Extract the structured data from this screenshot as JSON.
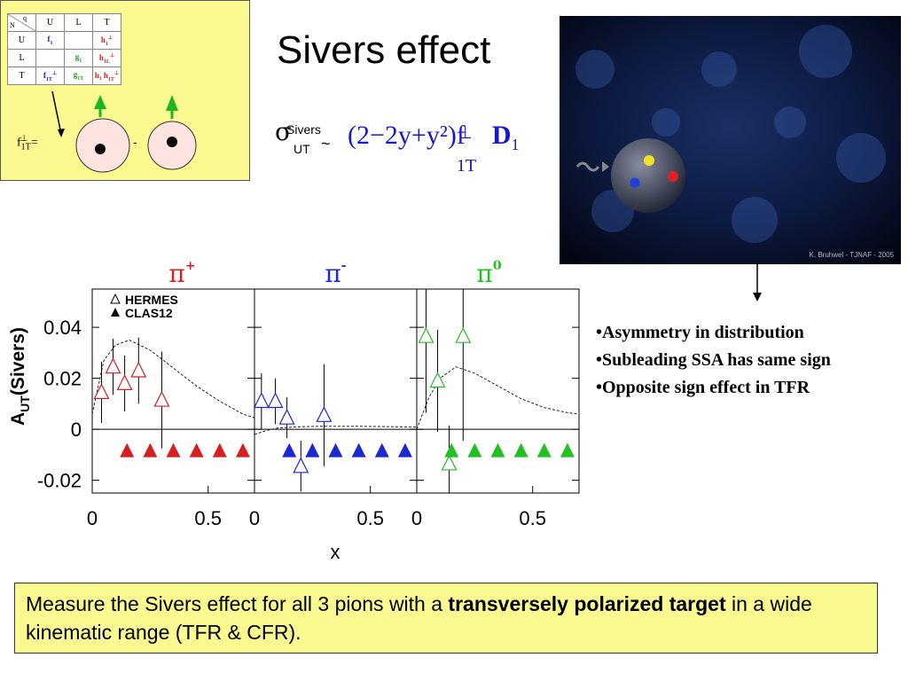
{
  "slide": {
    "title": "Sivers effect"
  },
  "inset": {
    "table": {
      "corner_n": "N",
      "corner_q": "q",
      "col_headers": [
        "U",
        "L",
        "T"
      ],
      "rows": [
        {
          "label": "U",
          "cells": [
            {
              "text": "f",
              "sub": "1",
              "sup": "",
              "color": "blue"
            },
            {
              "text": "",
              "sub": "",
              "sup": "",
              "color": ""
            },
            {
              "text": "h",
              "sub": "1",
              "sup": "⊥",
              "color": "red"
            }
          ]
        },
        {
          "label": "L",
          "cells": [
            {
              "text": "",
              "sub": "",
              "sup": "",
              "color": ""
            },
            {
              "text": "g",
              "sub": "1",
              "sup": "",
              "color": "green"
            },
            {
              "text": "h",
              "sub": "1L",
              "sup": "⊥",
              "color": "red"
            }
          ]
        },
        {
          "label": "T",
          "cells": [
            {
              "text": "f",
              "sub": "1T",
              "sup": "⊥",
              "color": "blue"
            },
            {
              "text": "g",
              "sub": "1T",
              "sup": "",
              "color": "green"
            },
            {
              "text": "h₁  h",
              "sub": "1T",
              "sup": "⊥",
              "color": "red"
            }
          ]
        }
      ]
    },
    "equation_lhs": "f",
    "equation_sub": "1T",
    "equation_sup": "⊥",
    "equation_eq": "=",
    "minus": "-"
  },
  "formula": {
    "sigma": "σ",
    "sivers": "Sivers",
    "ut": "UT",
    "tilde": "~",
    "expression": "(2−2y+y²)f",
    "f_sub": "1T",
    "f_sup": "⊥",
    "d": "D",
    "d_sub": "1"
  },
  "photo": {
    "credit": "K. Bruhwel - TJNAF - 2005"
  },
  "bullets": [
    "•Asymmetry in distribution",
    "•Subleading SSA has same sign",
    "•Opposite sign effect in TFR"
  ],
  "note": {
    "part1": "Measure the Sivers effect for all 3 pions with a ",
    "bold": "transversely polarized target",
    "part2": " in a wide kinematic range (TFR & CFR)."
  },
  "chart_data": {
    "type": "scatter",
    "ylabel": "A",
    "ylabel_sub": "UT",
    "ylabel_rest": "(Sivers)",
    "xlabel": "x",
    "ylim": [
      -0.025,
      0.055
    ],
    "xlim": [
      0,
      0.7
    ],
    "yticks": [
      {
        "value": 0.04,
        "label": "0.04"
      },
      {
        "value": 0.02,
        "label": "0.02"
      },
      {
        "value": 0,
        "label": "0"
      },
      {
        "value": -0.02,
        "label": "-0.02"
      }
    ],
    "xticks": [
      {
        "value": 0,
        "label": "0"
      },
      {
        "value": 0.5,
        "label": "0.5"
      }
    ],
    "legend": {
      "placement": "top-left",
      "entries": [
        {
          "symbol": "open-triangle",
          "label": "HERMES"
        },
        {
          "symbol": "filled-triangle",
          "label": "CLAS12"
        }
      ]
    },
    "panels": [
      {
        "title": "π",
        "title_sup": "+",
        "color": "#d42020",
        "hermes": [
          {
            "x": 0.04,
            "y": 0.0145,
            "err": 0.012
          },
          {
            "x": 0.09,
            "y": 0.0245,
            "err": 0.011
          },
          {
            "x": 0.14,
            "y": 0.018,
            "err": 0.011
          },
          {
            "x": 0.2,
            "y": 0.023,
            "err": 0.013
          },
          {
            "x": 0.3,
            "y": 0.0115,
            "err": 0.019
          }
        ],
        "clas12": {
          "y": -0.0085,
          "x": [
            0.15,
            0.25,
            0.35,
            0.45,
            0.55,
            0.65
          ]
        },
        "curve": [
          [
            0.0,
            0.006
          ],
          [
            0.05,
            0.027
          ],
          [
            0.1,
            0.033
          ],
          [
            0.16,
            0.035
          ],
          [
            0.25,
            0.031
          ],
          [
            0.35,
            0.024
          ],
          [
            0.45,
            0.017
          ],
          [
            0.55,
            0.011
          ],
          [
            0.65,
            0.006
          ],
          [
            0.7,
            0.0045
          ]
        ]
      },
      {
        "title": "π",
        "title_sup": "-",
        "color": "#1a2ad0",
        "hermes": [
          {
            "x": 0.03,
            "y": 0.011,
            "err": 0.011
          },
          {
            "x": 0.09,
            "y": 0.011,
            "err": 0.009
          },
          {
            "x": 0.14,
            "y": 0.0045,
            "err": 0.008
          },
          {
            "x": 0.2,
            "y": -0.0145,
            "err": 0.01
          },
          {
            "x": 0.3,
            "y": 0.0055,
            "err": 0.02
          }
        ],
        "clas12": {
          "y": -0.0085,
          "x": [
            0.15,
            0.25,
            0.35,
            0.45,
            0.55,
            0.65
          ]
        },
        "curve": [
          [
            0.0,
            -0.002
          ],
          [
            0.05,
            -0.0005
          ],
          [
            0.1,
            0.0005
          ],
          [
            0.2,
            0.001
          ],
          [
            0.3,
            0.0012
          ],
          [
            0.45,
            0.0012
          ],
          [
            0.6,
            0.001
          ],
          [
            0.7,
            0.0008
          ]
        ]
      },
      {
        "title": "π",
        "title_sup": "0",
        "color": "#22c022",
        "hermes": [
          {
            "x": 0.04,
            "y": 0.0365,
            "err": 0.03
          },
          {
            "x": 0.09,
            "y": 0.019,
            "err": 0.02
          },
          {
            "x": 0.14,
            "y": -0.0135,
            "err": 0.015
          },
          {
            "x": 0.2,
            "y": 0.0365,
            "err": 0.041
          }
        ],
        "clas12": {
          "y": -0.0085,
          "x": [
            0.15,
            0.25,
            0.35,
            0.45,
            0.55,
            0.65
          ]
        },
        "curve": [
          [
            0.0,
            0.0
          ],
          [
            0.05,
            0.012
          ],
          [
            0.1,
            0.02
          ],
          [
            0.17,
            0.0245
          ],
          [
            0.25,
            0.022
          ],
          [
            0.35,
            0.017
          ],
          [
            0.45,
            0.012
          ],
          [
            0.55,
            0.0085
          ],
          [
            0.65,
            0.0065
          ],
          [
            0.7,
            0.006
          ]
        ]
      }
    ]
  }
}
